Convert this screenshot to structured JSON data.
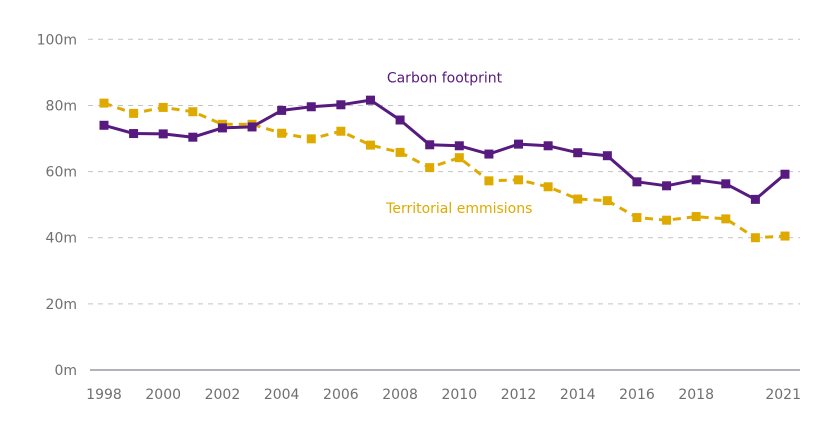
{
  "chart_data": {
    "type": "line",
    "title": "",
    "xlabel": "",
    "ylabel": "",
    "x": [
      1998,
      1999,
      2000,
      2001,
      2002,
      2003,
      2004,
      2005,
      2006,
      2007,
      2008,
      2009,
      2010,
      2011,
      2012,
      2013,
      2014,
      2015,
      2016,
      2017,
      2018,
      2019,
      2020,
      2021
    ],
    "x_tick_labels": [
      "1998",
      "2000",
      "2002",
      "2004",
      "2006",
      "2008",
      "2010",
      "2012",
      "2014",
      "2016",
      "2018",
      "2021"
    ],
    "x_tick_values": [
      1998,
      2000,
      2002,
      2004,
      2006,
      2008,
      2010,
      2012,
      2014,
      2016,
      2018,
      2021
    ],
    "y_tick_values": [
      0,
      20,
      40,
      60,
      80,
      100
    ],
    "y_tick_labels": [
      "0m",
      "20m",
      "40m",
      "60m",
      "80m",
      "100m"
    ],
    "ylim": [
      0,
      100
    ],
    "grid": true,
    "legend": "inline labels",
    "series": [
      {
        "name": "Carbon footprint",
        "color": "#571a7e",
        "line_style": "solid",
        "marker": "square",
        "label_anchor_year": 2009.5,
        "label_anchor_value": 87,
        "values": [
          74.0,
          71.5,
          71.4,
          70.4,
          73.2,
          73.5,
          78.5,
          79.6,
          80.2,
          81.6,
          75.6,
          68.1,
          67.8,
          65.3,
          68.3,
          67.8,
          65.7,
          64.8,
          56.9,
          55.7,
          57.5,
          56.3,
          51.6,
          59.2
        ]
      },
      {
        "name": "Territorial emmisions",
        "color": "#dfaa00",
        "line_style": "dashed",
        "marker": "square",
        "label_anchor_year": 2010.0,
        "label_anchor_value": 47.5,
        "values": [
          80.7,
          77.6,
          79.4,
          78.1,
          74.3,
          74.3,
          71.6,
          69.9,
          72.2,
          68.0,
          65.8,
          61.2,
          64.2,
          57.2,
          57.5,
          55.4,
          51.7,
          51.2,
          46.1,
          45.3,
          46.4,
          45.7,
          40.0,
          40.5
        ]
      }
    ]
  }
}
